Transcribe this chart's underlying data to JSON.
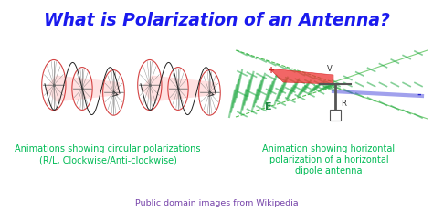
{
  "title": "What is Polarization of an Antenna?",
  "title_color": "#1a1aee",
  "title_fontsize": 13.5,
  "bg_color": "#ffffff",
  "left_caption_line1": "Animations showing circular polarizations",
  "left_caption_line2": "(R/L, Clockwise/Anti-clockwise)",
  "right_caption_line1": "Animation showing horizontal",
  "right_caption_line2": "polarization of a horizontal",
  "right_caption_line3": "dipole antenna",
  "caption_color": "#00bb55",
  "caption_fontsize": 7.0,
  "footer": "Public domain images from Wikipedia",
  "footer_color": "#7744aa",
  "footer_fontsize": 6.8,
  "wave_color": "#cc2222",
  "wave_fill_color": "#ffaaaa",
  "spoke_color": "#666666",
  "green_stripe_color": "#22aa44",
  "red_wing_color": "#ee3333",
  "blue_strip_color": "#4444dd",
  "antenna_color": "#555555",
  "label_E_color": "#228844",
  "label_plus_color": "#cc2222",
  "label_minus_color": "#2222cc"
}
